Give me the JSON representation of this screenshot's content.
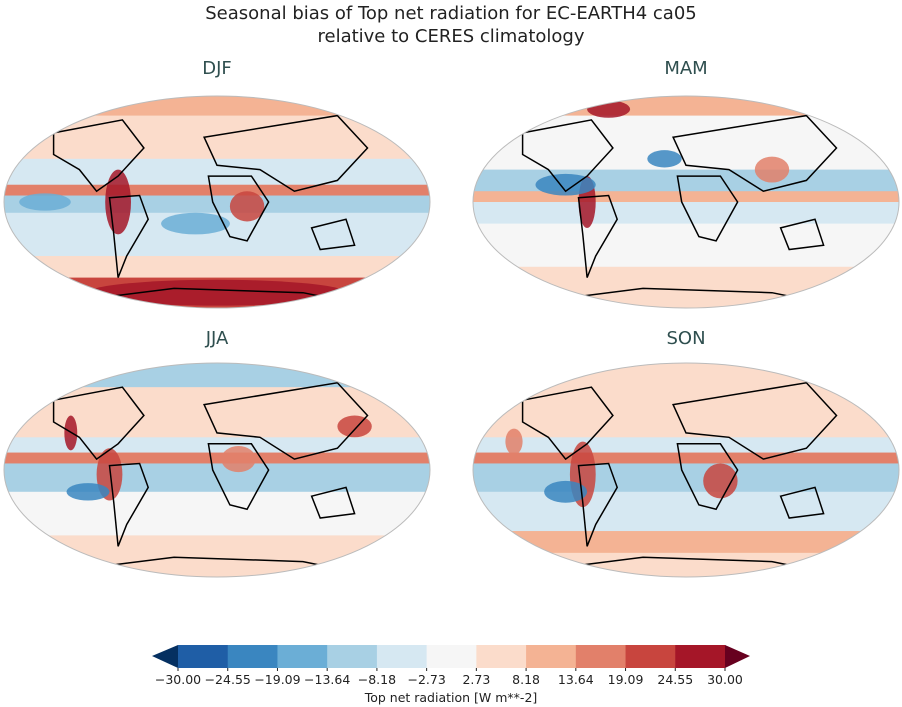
{
  "title": {
    "line1": "Seasonal bias of Top net radiation for EC-EARTH4 ca05",
    "line2": "relative to CERES climatology"
  },
  "panels": [
    {
      "season": "DJF"
    },
    {
      "season": "MAM"
    },
    {
      "season": "JJA"
    },
    {
      "season": "SON"
    }
  ],
  "colorbar": {
    "label": "Top net radiation [W m**-2]",
    "ticks": [
      "−30.00",
      "−24.55",
      "−19.09",
      "−13.64",
      "−8.18",
      "−2.73",
      "2.73",
      "8.18",
      "13.64",
      "19.09",
      "24.55",
      "30.00"
    ],
    "range": [
      -30,
      30
    ],
    "extend": "both",
    "colors": [
      "#1f5ea6",
      "#3a86c0",
      "#6baed6",
      "#a8d0e4",
      "#d6e8f2",
      "#f6f6f6",
      "#fbdccb",
      "#f4b394",
      "#e2806a",
      "#c8453e",
      "#a51628"
    ],
    "under_color": "#053061",
    "over_color": "#67001f"
  }
}
